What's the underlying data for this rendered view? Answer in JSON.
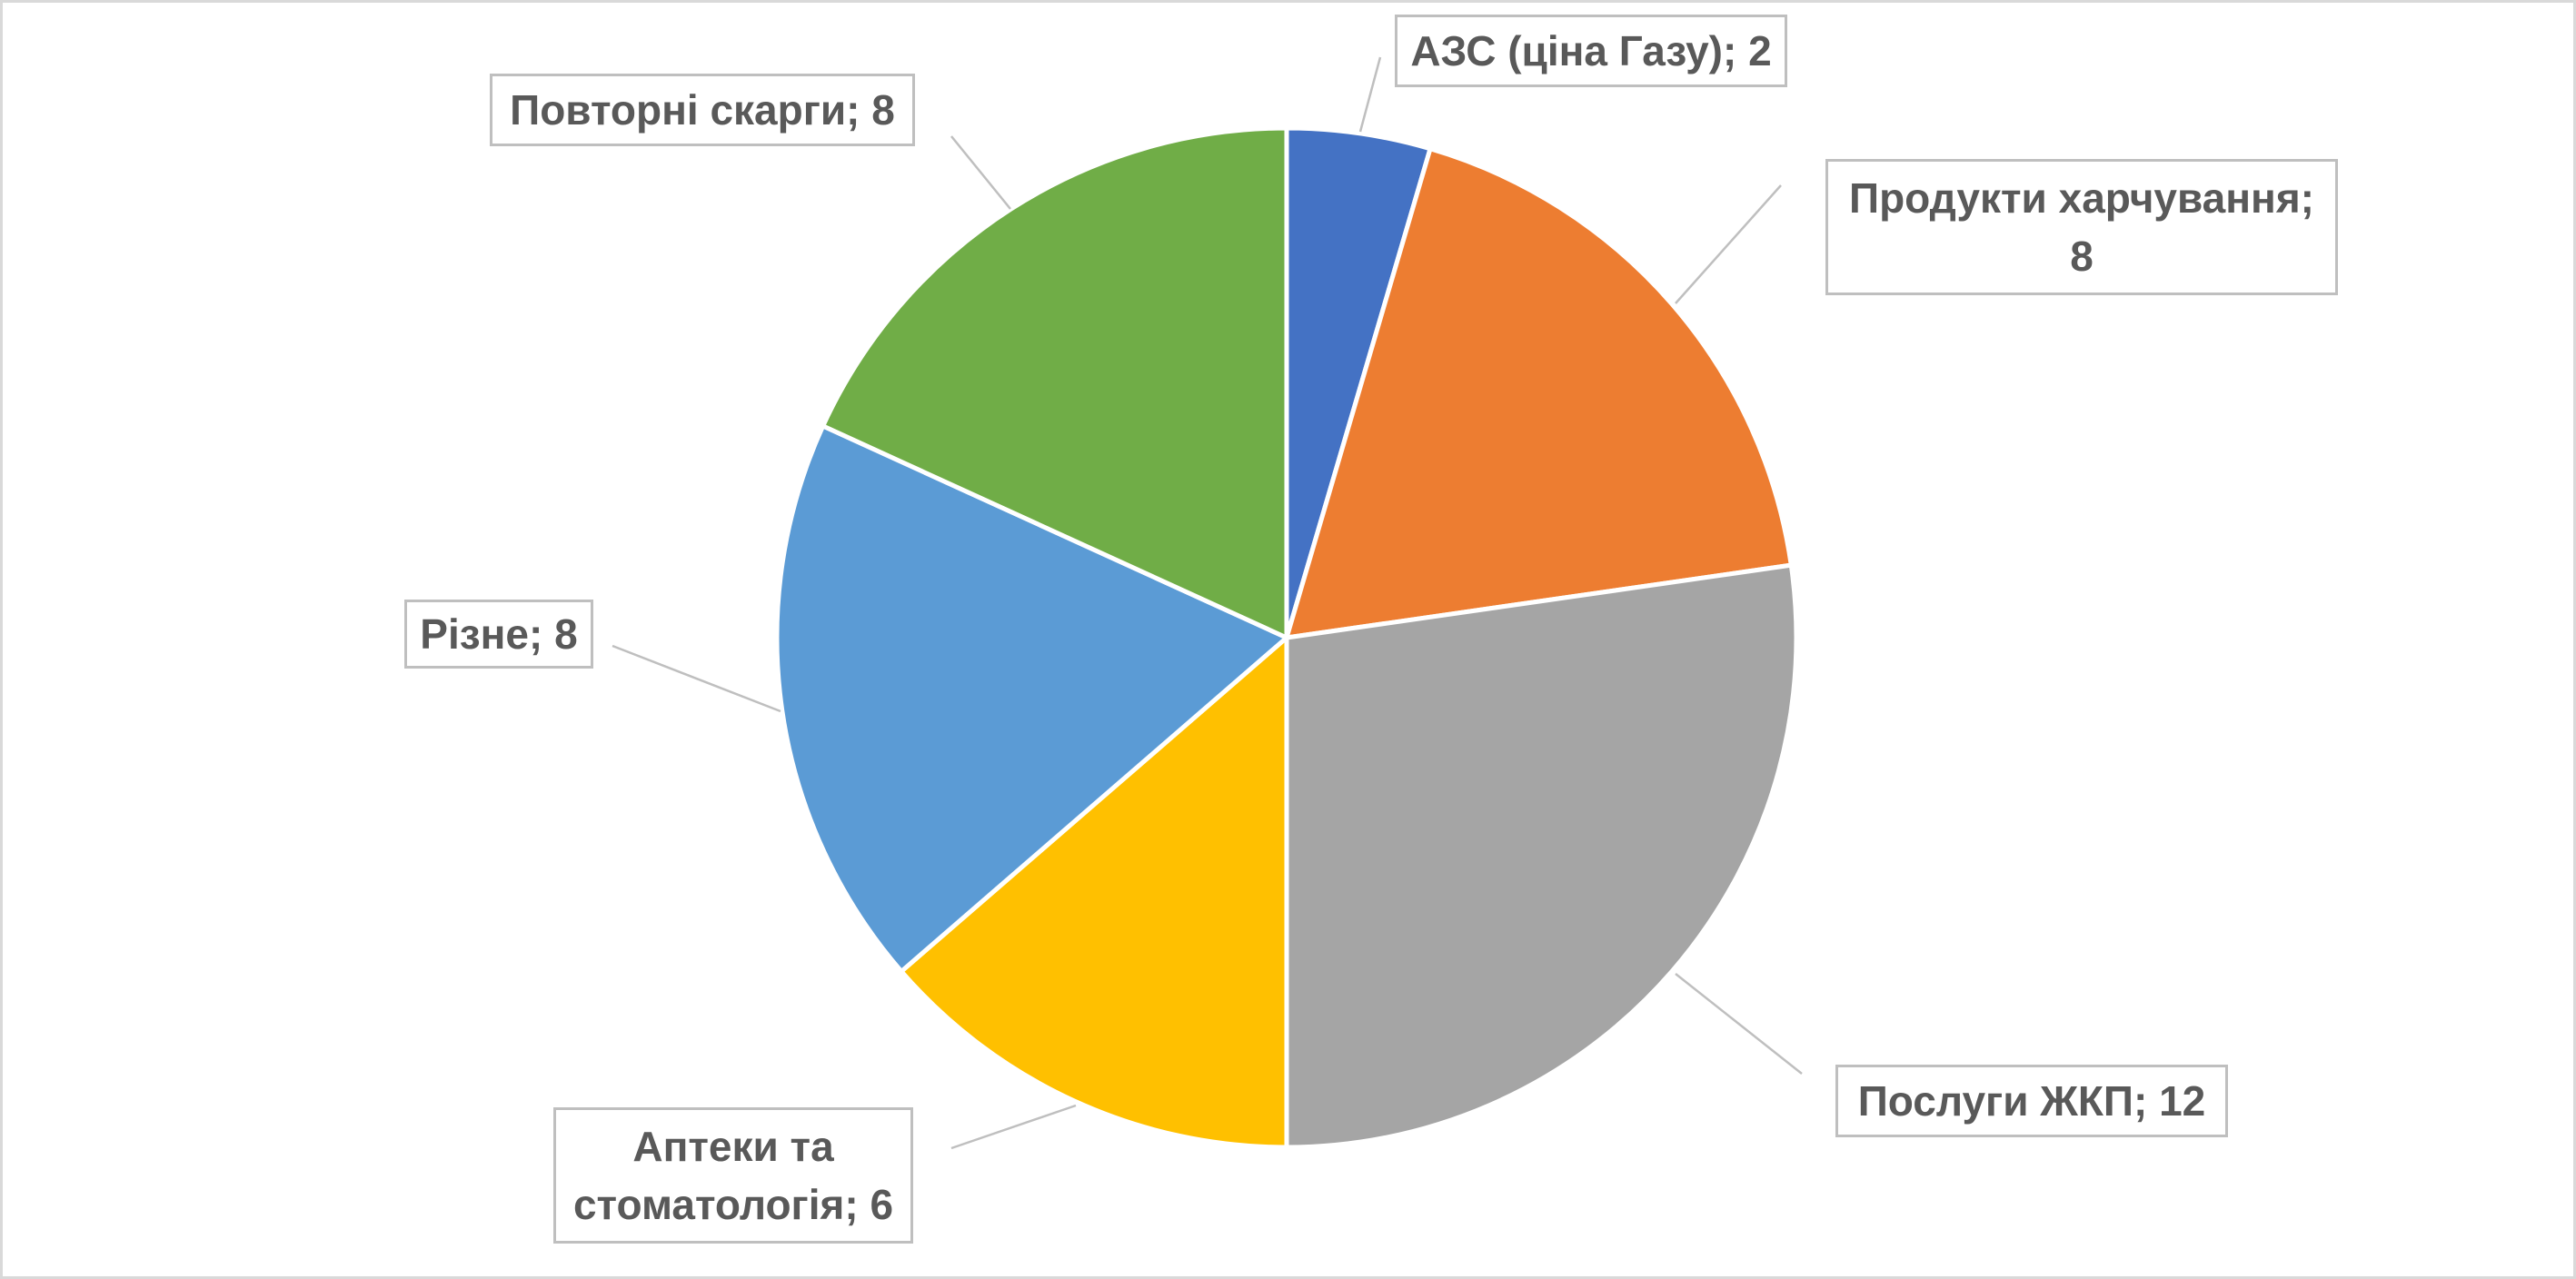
{
  "chart_data": {
    "type": "pie",
    "values": [
      2,
      8,
      12,
      6,
      8,
      8
    ],
    "value_labels": [
      "АЗС (ціна Газу); 2",
      "Продукти харчування; 8",
      "Послуги ЖКП; 12",
      "Аптеки та стоматологія; 6",
      "Різне; 8",
      "Повторні скарги; 8"
    ],
    "colors": [
      "#4472c4",
      "#ed7d31",
      "#a5a5a5",
      "#ffc000",
      "#5b9bd5",
      "#70ad47"
    ]
  }
}
